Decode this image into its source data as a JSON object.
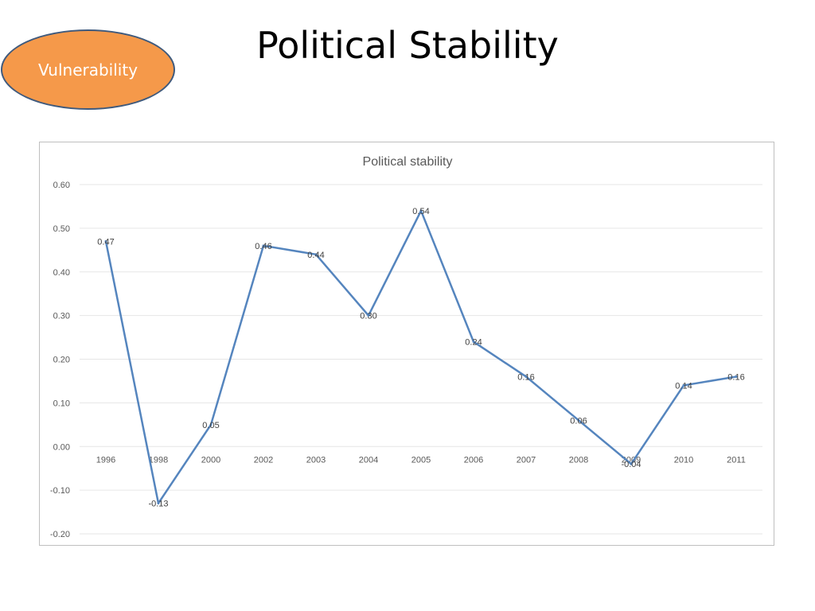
{
  "slide": {
    "title": "Political Stability",
    "badge_label": "Vulnerability"
  },
  "colors": {
    "badge_fill": "#f5994a",
    "badge_border": "#3f5a7d",
    "series_line": "#5585be",
    "gridline": "#e6e6e6"
  },
  "chart_data": {
    "type": "line",
    "title": "Political stability",
    "categories": [
      "1996",
      "1998",
      "2000",
      "2002",
      "2003",
      "2004",
      "2005",
      "2006",
      "2007",
      "2008",
      "2009",
      "2010",
      "2011"
    ],
    "series": [
      {
        "values": [
          0.47,
          -0.13,
          0.05,
          0.46,
          0.44,
          0.3,
          0.54,
          0.24,
          0.16,
          0.06,
          -0.04,
          0.14,
          0.16
        ],
        "labels": [
          "0.47",
          "-0.13",
          "0.05",
          "0.46",
          "0.44",
          "0.30",
          "0.54",
          "0.24",
          "0.16",
          "0.06",
          "-0.04",
          "0.14",
          "0.16"
        ]
      }
    ],
    "ylim": [
      -0.2,
      0.6
    ],
    "yticks": [
      "0.60",
      "0.50",
      "0.40",
      "0.30",
      "0.20",
      "0.10",
      "0.00",
      "-0.10",
      "-0.20"
    ],
    "grid": true,
    "legend": "none"
  }
}
